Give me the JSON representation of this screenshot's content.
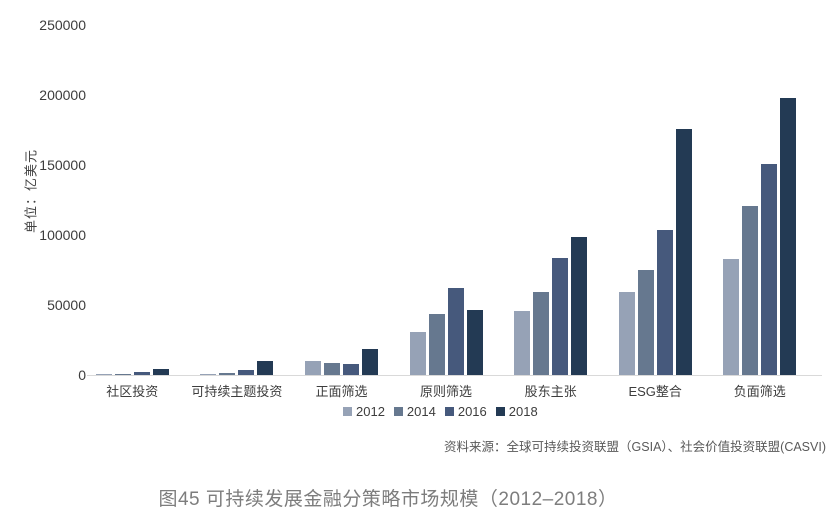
{
  "chart_data": {
    "type": "bar",
    "title": "图45  可持续发展金融分策略市场规模（2012–2018）",
    "ylabel": "单位：亿美元",
    "xlabel": "",
    "categories": [
      "社区投资",
      "可持续主题投资",
      "正面筛选",
      "原则筛选",
      "股东主张",
      "ESG整合",
      "负面筛选"
    ],
    "series": [
      {
        "name": "2012",
        "color": "#96A2B6",
        "values": [
          890,
          830,
          9990,
          30380,
          45890,
          59350,
          82800
        ]
      },
      {
        "name": "2014",
        "color": "#66788F",
        "values": [
          1010,
          1370,
          8900,
          43850,
          59190,
          75270,
          120460
        ]
      },
      {
        "name": "2016",
        "color": "#46597C",
        "values": [
          2480,
          3310,
          8180,
          61950,
          83650,
          103530,
          150640
        ]
      },
      {
        "name": "2018",
        "color": "#233A54",
        "values": [
          4440,
          10180,
          18420,
          46790,
          98350,
          175440,
          197710
        ]
      }
    ],
    "ylim": [
      0,
      250000
    ],
    "yticks": [
      0,
      50000,
      100000,
      150000,
      200000,
      250000
    ],
    "grid": false,
    "legend_position": "bottom",
    "source_note": "资料来源：全球可持续投资联盟（GSIA）、社会价值投资联盟(CASVI)"
  },
  "colors": {
    "axis_line": "#d9d9d9",
    "tick_text": "#3d3d3d",
    "source_text": "#595959",
    "caption_text": "#7d7d7d"
  }
}
